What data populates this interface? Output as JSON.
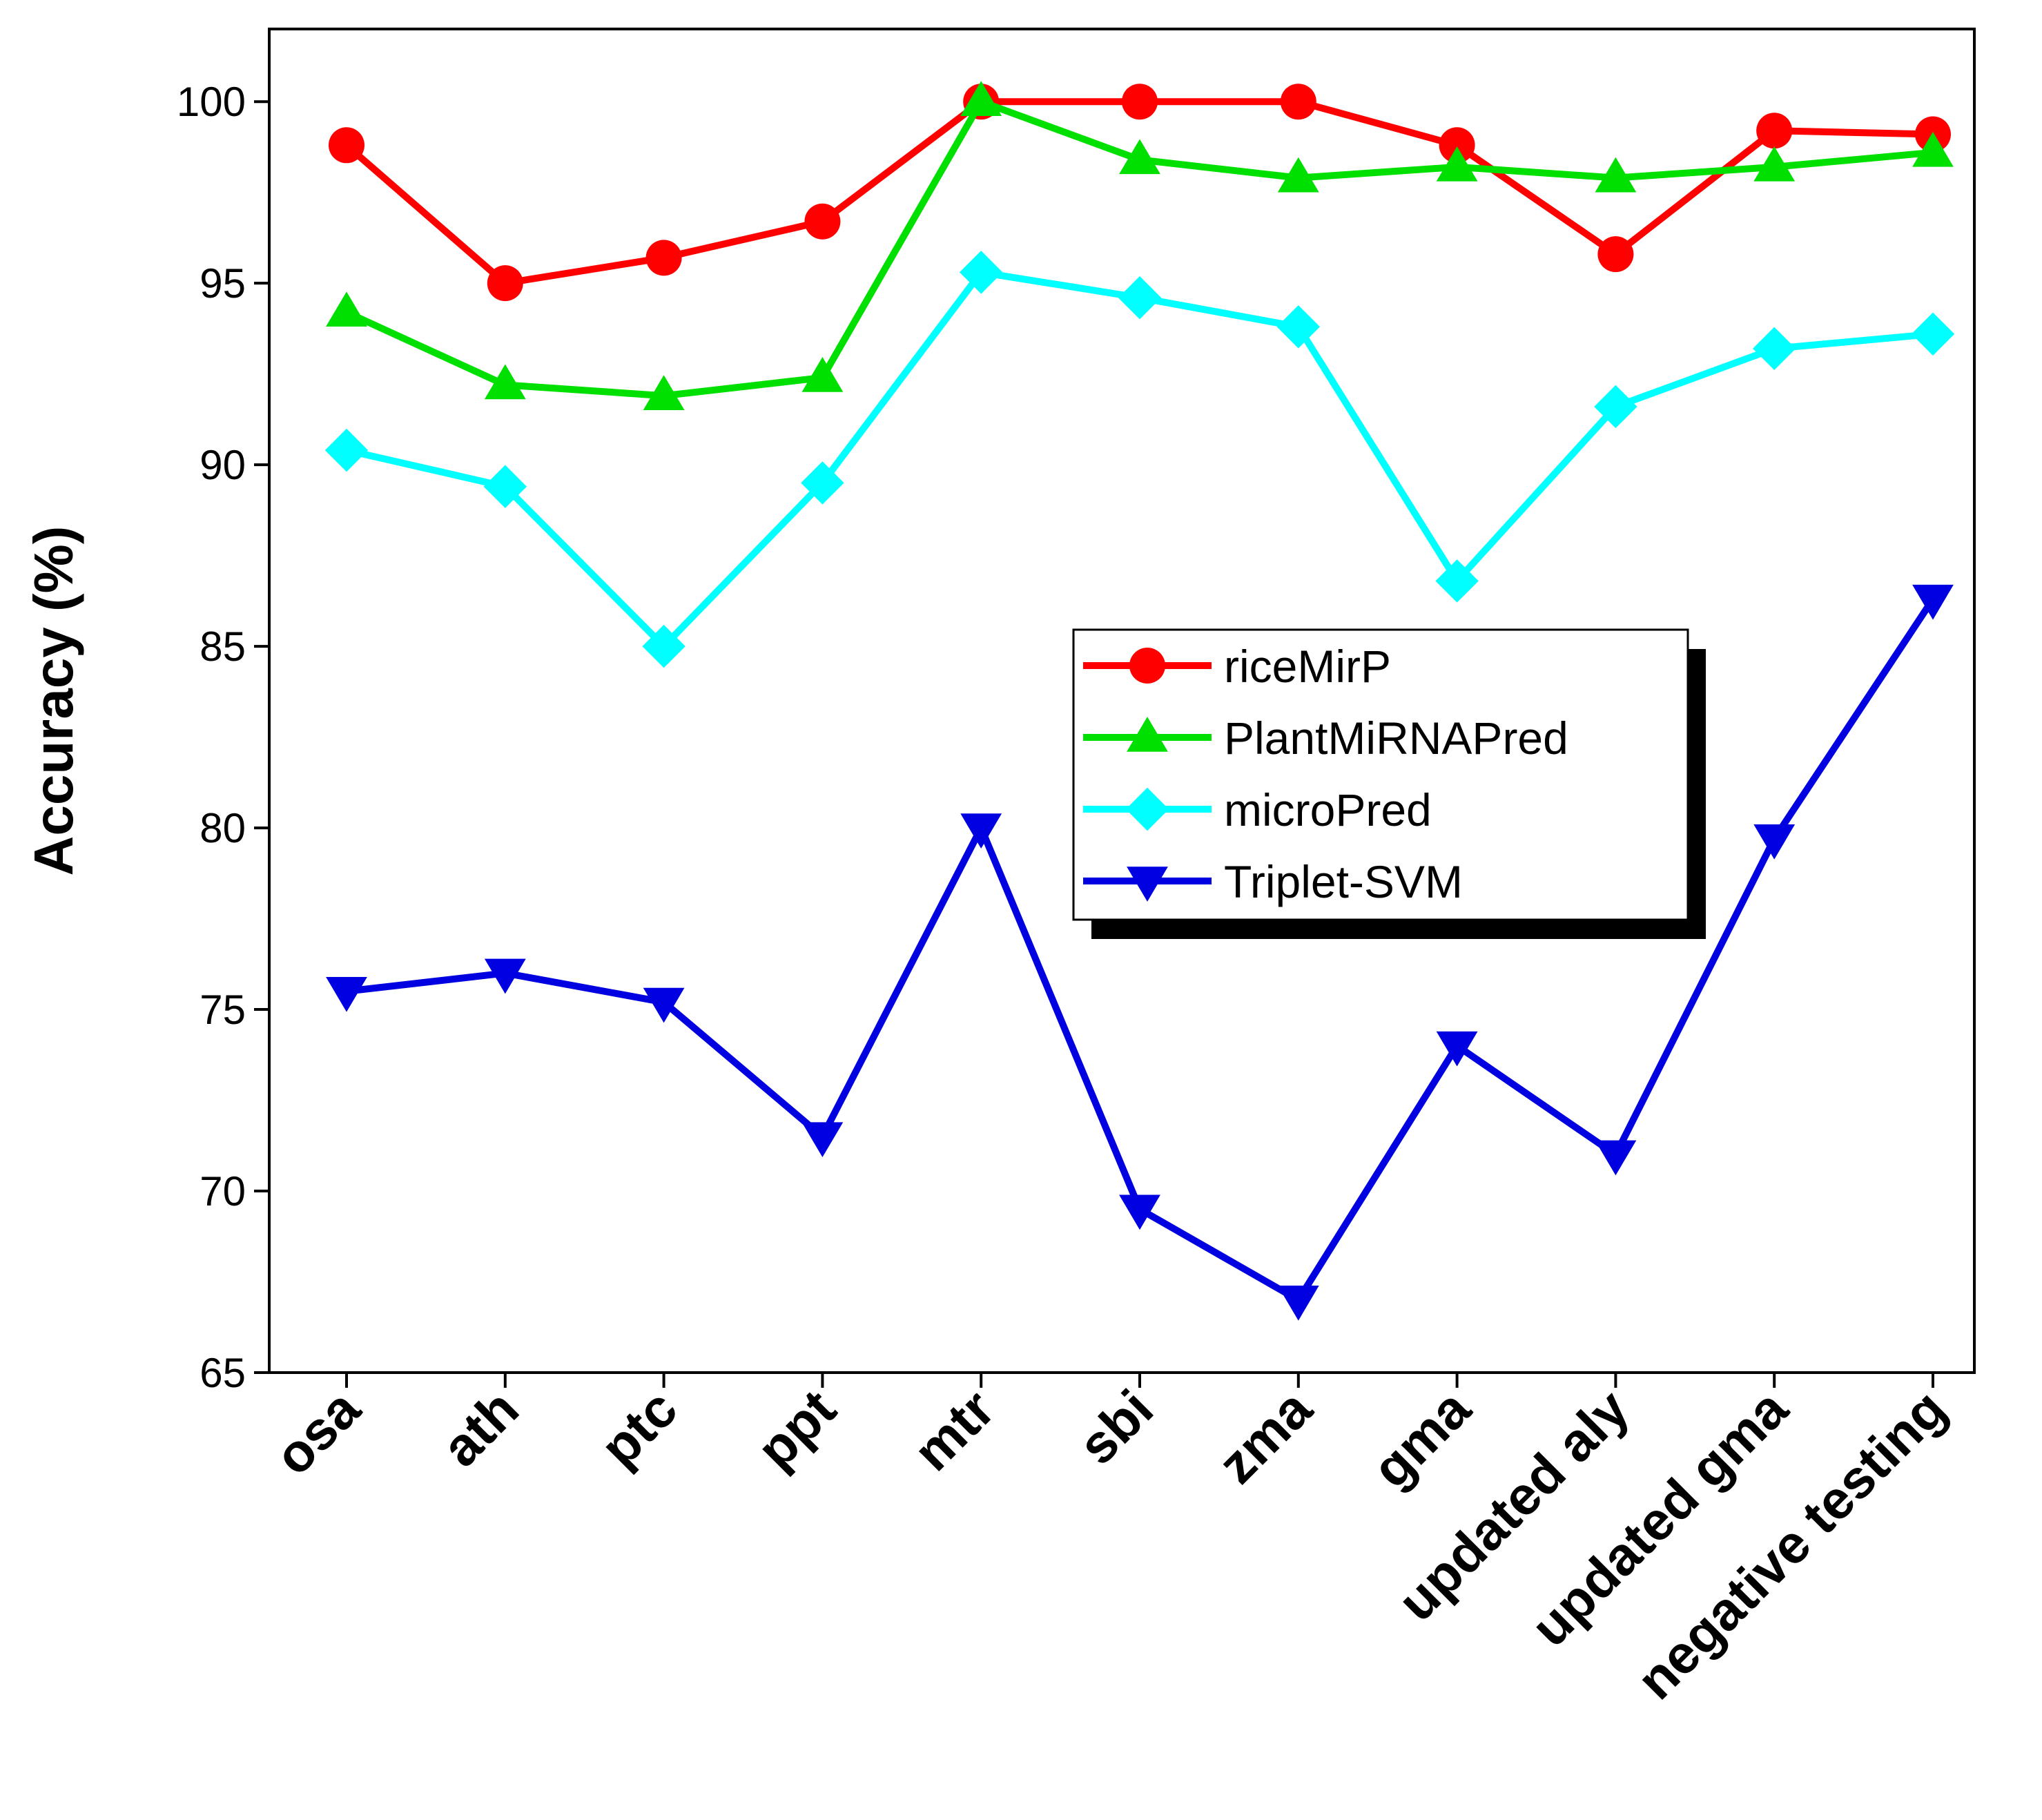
{
  "chart_data": {
    "type": "line",
    "title": "",
    "xlabel": "",
    "ylabel": "Accuracy (%)",
    "ylim": [
      65,
      102
    ],
    "yticks": [
      65,
      70,
      75,
      80,
      85,
      90,
      95,
      100
    ],
    "categories": [
      "osa",
      "ath",
      "ptc",
      "ppt",
      "mtr",
      "sbi",
      "zma",
      "gma",
      "updated aly",
      "updated gma",
      "negative testing"
    ],
    "legend_position": "center-right",
    "series": [
      {
        "name": "riceMirP",
        "color": "#ff0000",
        "marker": "circle",
        "values": [
          98.8,
          95.0,
          95.7,
          96.7,
          100.0,
          100.0,
          100.0,
          98.8,
          95.8,
          99.2,
          99.1
        ]
      },
      {
        "name": "PlantMiRNAPred",
        "color": "#00e000",
        "marker": "triangle-up",
        "values": [
          94.2,
          92.2,
          91.9,
          92.4,
          100.0,
          98.4,
          97.9,
          98.2,
          97.9,
          98.2,
          98.6
        ]
      },
      {
        "name": "microPred",
        "color": "#00ffff",
        "marker": "diamond",
        "values": [
          90.4,
          89.4,
          85.0,
          89.5,
          95.3,
          94.6,
          93.8,
          86.8,
          91.6,
          93.2,
          93.6
        ]
      },
      {
        "name": "Triplet-SVM",
        "color": "#0000e0",
        "marker": "triangle-down",
        "values": [
          75.5,
          76.0,
          75.2,
          71.5,
          80.0,
          69.5,
          67.0,
          74.0,
          71.0,
          79.7,
          86.3
        ]
      }
    ]
  }
}
